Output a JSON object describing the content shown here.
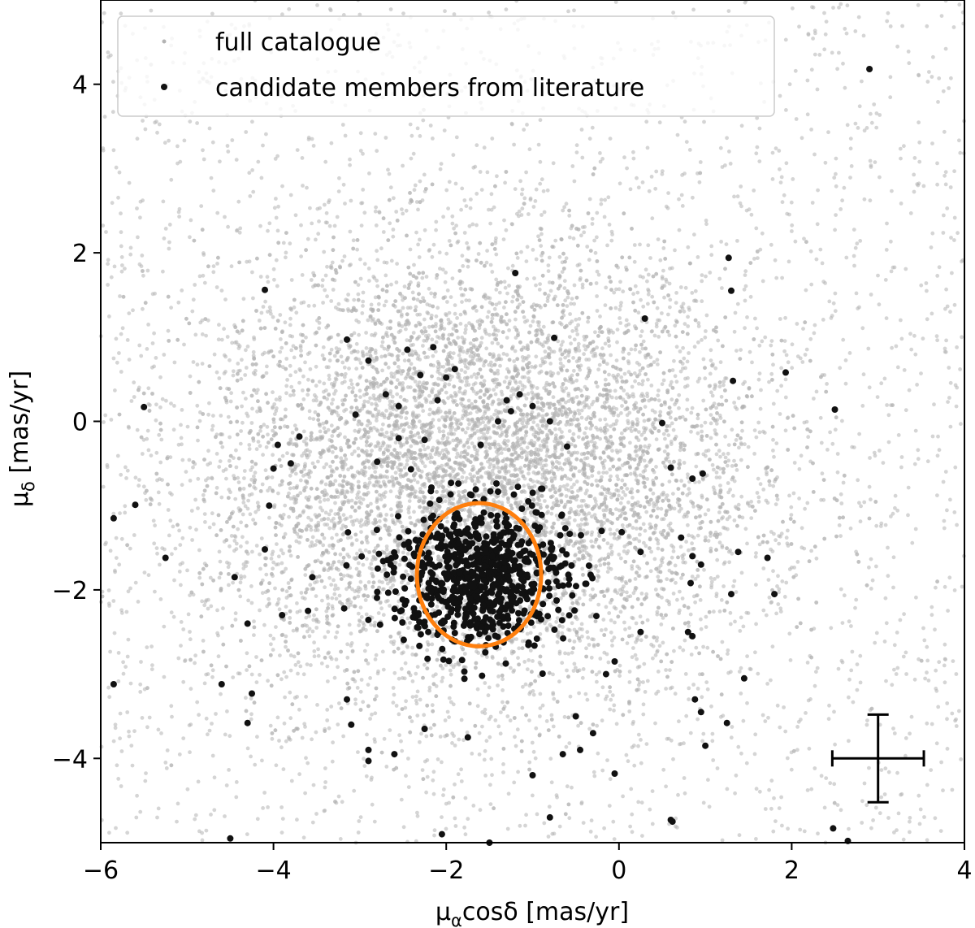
{
  "chart_data": {
    "type": "scatter",
    "xlabel_parts": [
      "μ",
      "α",
      "cosδ [mas/yr]"
    ],
    "ylabel_parts": [
      "μ",
      "δ",
      " [mas/yr]"
    ],
    "xlim": [
      -6,
      4
    ],
    "ylim": [
      -5,
      5
    ],
    "xticks": [
      -6,
      -4,
      -2,
      0,
      2,
      4
    ],
    "yticks": [
      -4,
      -2,
      0,
      2,
      4
    ],
    "xtick_labels": [
      "−6",
      "−4",
      "−2",
      "0",
      "2",
      "4"
    ],
    "ytick_labels": [
      "−4",
      "−2",
      "0",
      "2",
      "4"
    ],
    "grid": false,
    "legend_position": "top-left",
    "series": [
      {
        "name": "full catalogue",
        "color": "#b3b3b3",
        "distribution": {
          "type": "gaussian-cloud",
          "center": [
            -1.6,
            -0.6
          ],
          "sigma": [
            1.6,
            1.3
          ],
          "count": 9000,
          "background_count": 2500
        }
      },
      {
        "name": "candidate members from literature",
        "color": "#111111",
        "points": [
          [
            2.9,
            4.18
          ],
          [
            -1.2,
            1.76
          ],
          [
            -4.1,
            1.56
          ],
          [
            1.27,
            1.94
          ],
          [
            1.3,
            1.55
          ],
          [
            0.3,
            1.22
          ],
          [
            1.93,
            0.58
          ],
          [
            1.32,
            0.48
          ],
          [
            -5.5,
            0.17
          ],
          [
            2.5,
            0.14
          ],
          [
            -3.15,
            0.97
          ],
          [
            -0.75,
            0.99
          ],
          [
            -5.85,
            -1.15
          ],
          [
            -5.6,
            -0.99
          ],
          [
            -5.25,
            -1.62
          ],
          [
            -5.85,
            -3.12
          ],
          [
            -4.6,
            -3.12
          ],
          [
            -4.5,
            -4.95
          ],
          [
            -4.45,
            -1.85
          ],
          [
            -4.3,
            -3.58
          ],
          [
            -4.25,
            -3.23
          ],
          [
            -4.0,
            -0.56
          ],
          [
            -4.05,
            -1.0
          ],
          [
            -4.1,
            -1.52
          ],
          [
            -4.3,
            -2.4
          ],
          [
            -3.9,
            -2.3
          ],
          [
            -3.6,
            -2.25
          ],
          [
            -3.8,
            -0.5
          ],
          [
            -3.95,
            -0.28
          ],
          [
            -3.7,
            -0.18
          ],
          [
            -3.55,
            -1.85
          ],
          [
            -3.1,
            -3.6
          ],
          [
            -3.15,
            -3.3
          ],
          [
            -2.9,
            -3.9
          ],
          [
            -2.9,
            -4.03
          ],
          [
            -2.6,
            -3.95
          ],
          [
            -2.25,
            -3.65
          ],
          [
            -2.05,
            -4.9
          ],
          [
            -1.75,
            -3.75
          ],
          [
            -1.5,
            -5.0
          ],
          [
            -1.0,
            -4.2
          ],
          [
            -0.8,
            -4.7
          ],
          [
            -0.65,
            -3.95
          ],
          [
            -0.5,
            -3.5
          ],
          [
            -0.45,
            -3.9
          ],
          [
            -0.3,
            -3.7
          ],
          [
            -0.05,
            -4.18
          ],
          [
            0.6,
            -4.73
          ],
          [
            0.62,
            -4.75
          ],
          [
            1.0,
            -3.85
          ],
          [
            1.25,
            -3.58
          ],
          [
            1.45,
            -3.05
          ],
          [
            0.95,
            -3.45
          ],
          [
            0.88,
            -3.3
          ],
          [
            0.85,
            -2.55
          ],
          [
            0.8,
            -2.5
          ],
          [
            0.85,
            -1.6
          ],
          [
            0.72,
            -1.38
          ],
          [
            0.6,
            -0.55
          ],
          [
            0.85,
            -0.68
          ],
          [
            0.97,
            -0.62
          ],
          [
            0.95,
            -1.7
          ],
          [
            0.83,
            -1.92
          ],
          [
            1.38,
            -1.55
          ],
          [
            1.72,
            -1.62
          ],
          [
            1.8,
            -2.05
          ],
          [
            1.3,
            -2.05
          ],
          [
            2.48,
            -4.83
          ],
          [
            2.65,
            -4.98
          ],
          [
            0.25,
            -1.55
          ],
          [
            0.25,
            -2.5
          ],
          [
            -0.05,
            -2.85
          ],
          [
            -0.15,
            -3.0
          ],
          [
            -0.2,
            -1.3
          ],
          [
            0.5,
            -0.02
          ],
          [
            -0.9,
            -0.8
          ],
          [
            -1.05,
            -0.95
          ],
          [
            -1.15,
            0.32
          ],
          [
            -1.25,
            0.12
          ],
          [
            -1.4,
            0.0
          ],
          [
            -1.6,
            -0.28
          ],
          [
            -1.9,
            0.62
          ],
          [
            -2.0,
            0.52
          ],
          [
            -2.15,
            0.88
          ],
          [
            -2.3,
            0.55
          ],
          [
            -2.55,
            -0.2
          ],
          [
            -2.7,
            0.32
          ],
          [
            -2.9,
            0.72
          ],
          [
            -3.05,
            0.08
          ],
          [
            -2.45,
            0.85
          ],
          [
            -2.55,
            0.18
          ],
          [
            -2.25,
            -0.22
          ],
          [
            -2.1,
            0.25
          ],
          [
            -1.3,
            0.25
          ],
          [
            -1.0,
            0.18
          ],
          [
            -0.8,
            0.0
          ],
          [
            -0.6,
            -0.3
          ]
        ],
        "dense_cluster": {
          "center": [
            -1.62,
            -1.82
          ],
          "sigma": [
            0.5,
            0.42
          ],
          "count": 750
        }
      }
    ],
    "annotations": {
      "ellipse": {
        "center": [
          -1.62,
          -1.82
        ],
        "radii": [
          0.72,
          0.85
        ],
        "color": "#ff7f0e"
      },
      "error_bar": {
        "center": [
          3.0,
          -4.0
        ],
        "xerr": 0.53,
        "yerr": 0.52,
        "color": "#000000"
      }
    }
  }
}
